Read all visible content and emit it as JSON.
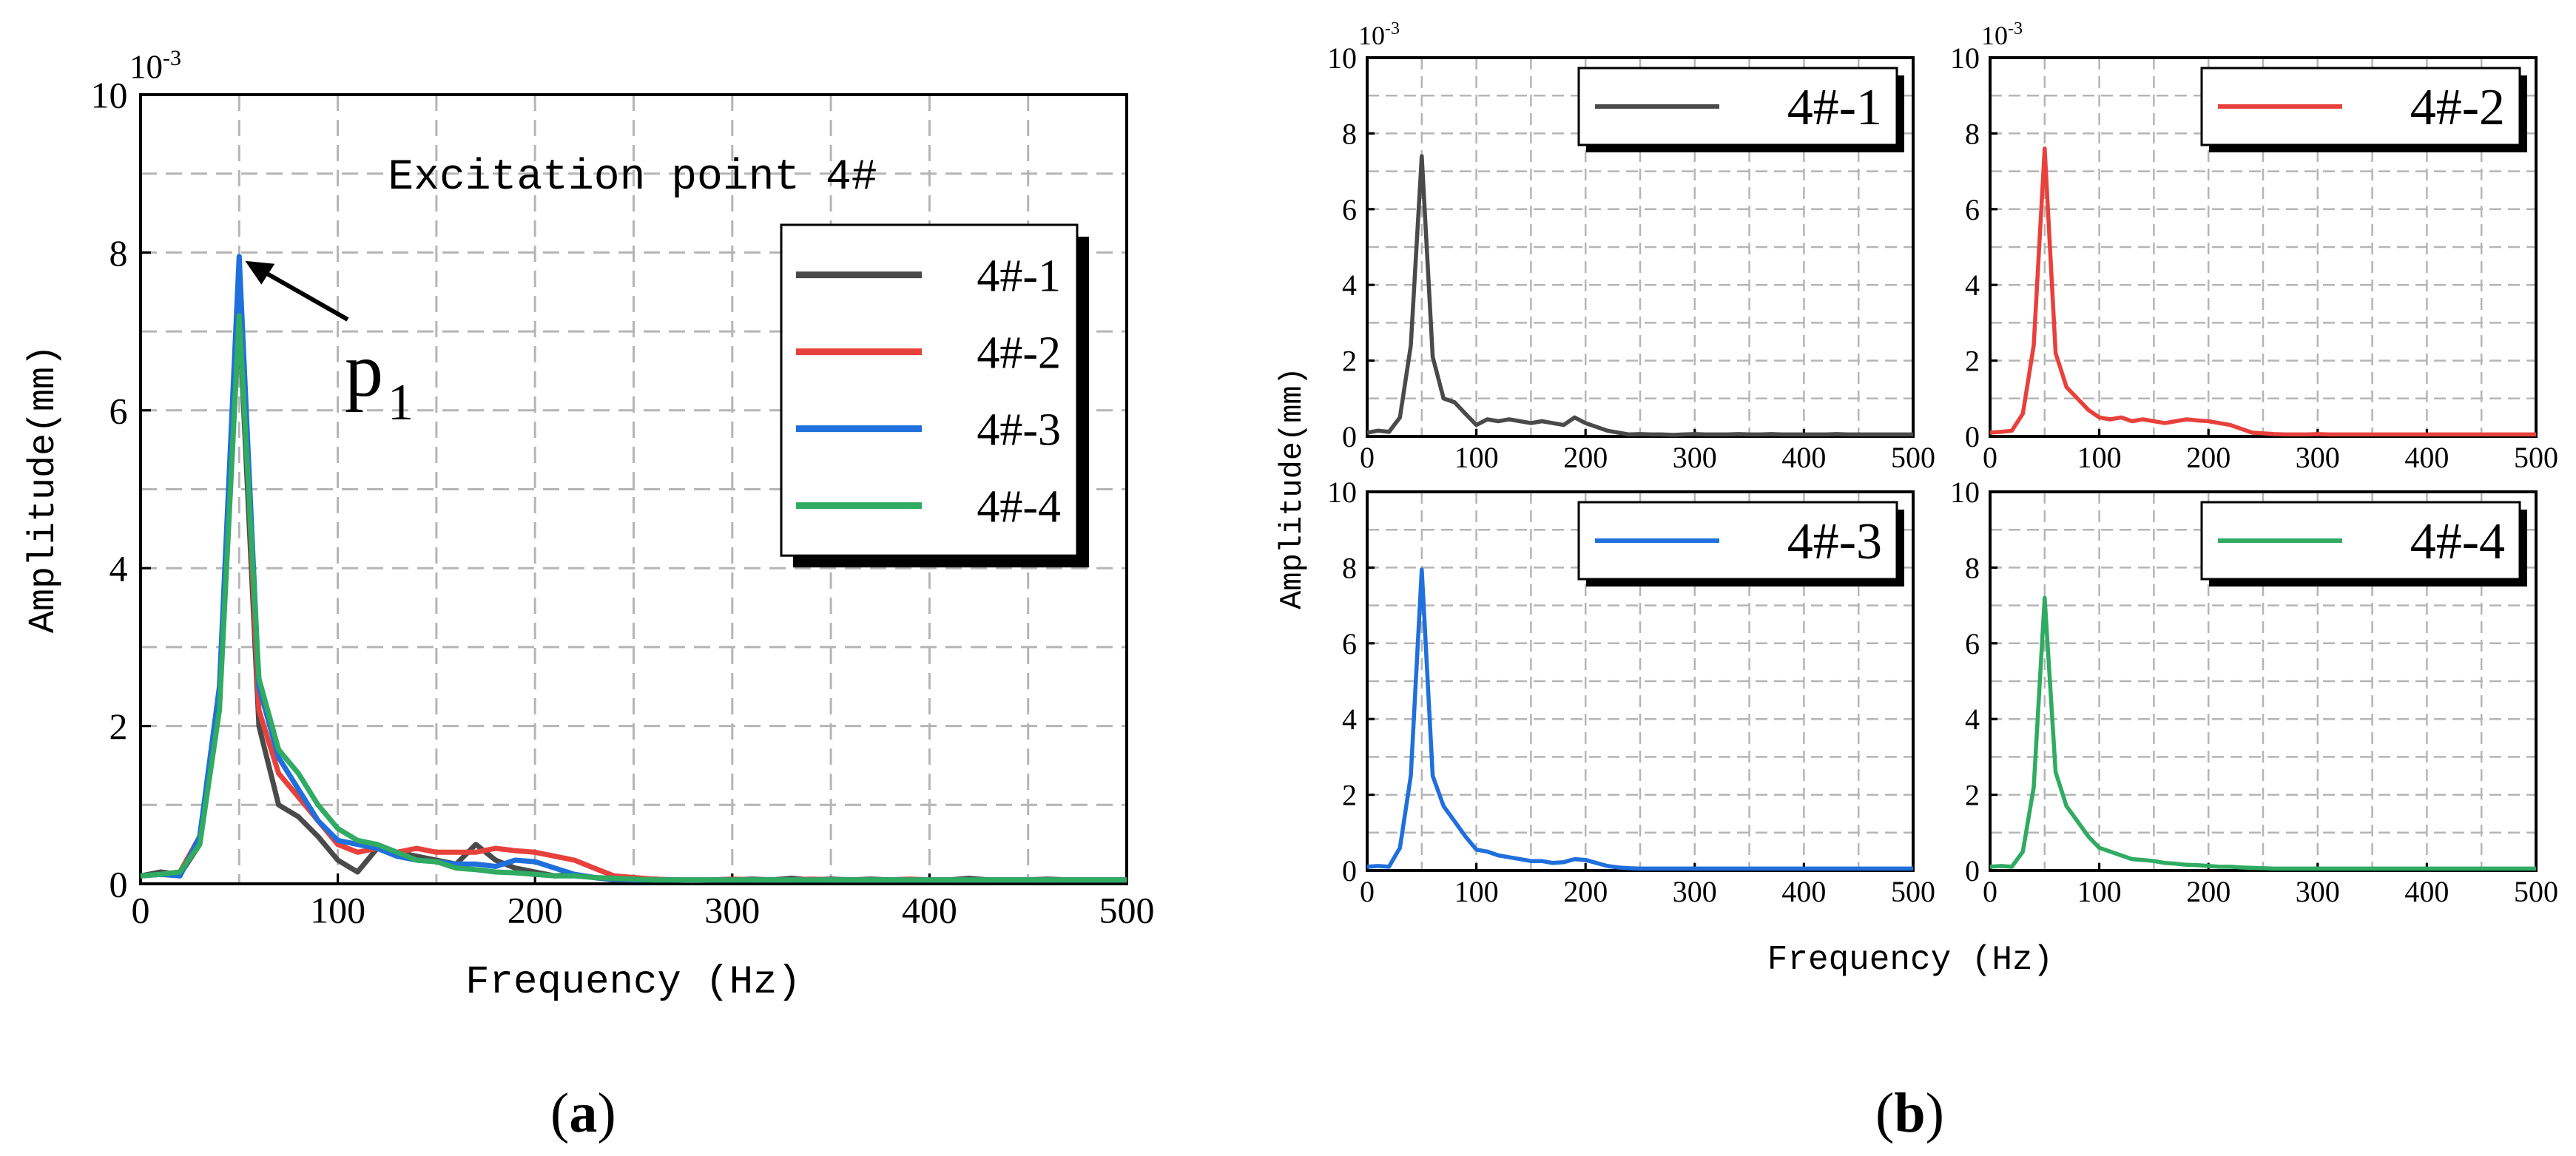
{
  "panel_labels": {
    "a": "a",
    "b": "b"
  },
  "series_colors": {
    "4#-1": "#4a4a4a",
    "4#-2": "#e8413c",
    "4#-3": "#1f6fdc",
    "4#-4": "#2fab62"
  },
  "chart_data": [
    {
      "id": "a",
      "type": "line",
      "title": "Excitation point 4#",
      "xlabel": "Frequency (Hz)",
      "ylabel": "Amplitude(mm)",
      "y_exponent": "10",
      "y_exponent_power": "-3",
      "xlim": [
        0,
        500
      ],
      "ylim": [
        0,
        10
      ],
      "xticks": [
        0,
        100,
        200,
        300,
        400,
        500
      ],
      "yticks": [
        0,
        2,
        4,
        6,
        8,
        10
      ],
      "grid": true,
      "legend_position": "right",
      "annotation": {
        "text": "p",
        "subscript": "1",
        "x": 50,
        "y": 7.95
      },
      "x": [
        0,
        10,
        20,
        30,
        40,
        50,
        60,
        70,
        80,
        90,
        100,
        110,
        120,
        130,
        140,
        150,
        160,
        170,
        180,
        190,
        200,
        210,
        220,
        230,
        240,
        250,
        260,
        270,
        280,
        290,
        300,
        310,
        320,
        330,
        340,
        350,
        360,
        370,
        380,
        390,
        400,
        410,
        420,
        430,
        440,
        450,
        460,
        470,
        480,
        490,
        500
      ],
      "series": [
        {
          "name": "4#-1",
          "values": [
            0.1,
            0.15,
            0.12,
            0.5,
            2.3,
            7.2,
            2.0,
            1.0,
            0.85,
            0.6,
            0.3,
            0.15,
            0.45,
            0.4,
            0.35,
            0.3,
            0.25,
            0.5,
            0.3,
            0.2,
            0.15,
            0.1,
            0.12,
            0.08,
            0.05,
            0.05,
            0.06,
            0.05,
            0.04,
            0.05,
            0.05,
            0.06,
            0.05,
            0.07,
            0.05,
            0.06,
            0.05,
            0.06,
            0.05,
            0.05,
            0.05,
            0.05,
            0.07,
            0.05,
            0.05,
            0.05,
            0.06,
            0.05,
            0.05,
            0.05,
            0.05
          ]
        },
        {
          "name": "4#-2",
          "values": [
            0.1,
            0.12,
            0.15,
            0.6,
            2.4,
            7.6,
            2.2,
            1.4,
            1.1,
            0.8,
            0.5,
            0.4,
            0.45,
            0.4,
            0.45,
            0.4,
            0.4,
            0.4,
            0.45,
            0.42,
            0.4,
            0.35,
            0.3,
            0.2,
            0.1,
            0.08,
            0.06,
            0.05,
            0.05,
            0.05,
            0.06,
            0.05,
            0.05,
            0.05,
            0.06,
            0.05,
            0.05,
            0.05,
            0.05,
            0.06,
            0.05,
            0.05,
            0.05,
            0.05,
            0.05,
            0.05,
            0.05,
            0.05,
            0.05,
            0.05,
            0.05
          ]
        },
        {
          "name": "4#-3",
          "values": [
            0.1,
            0.12,
            0.1,
            0.6,
            2.5,
            7.95,
            2.5,
            1.6,
            1.2,
            0.8,
            0.55,
            0.5,
            0.45,
            0.35,
            0.3,
            0.28,
            0.25,
            0.25,
            0.22,
            0.3,
            0.28,
            0.2,
            0.12,
            0.08,
            0.06,
            0.05,
            0.05,
            0.05,
            0.05,
            0.05,
            0.05,
            0.05,
            0.05,
            0.05,
            0.05,
            0.05,
            0.05,
            0.05,
            0.05,
            0.05,
            0.05,
            0.05,
            0.05,
            0.05,
            0.05,
            0.05,
            0.05,
            0.05,
            0.05,
            0.05,
            0.05
          ]
        },
        {
          "name": "4#-4",
          "values": [
            0.1,
            0.12,
            0.15,
            0.5,
            2.2,
            7.2,
            2.6,
            1.7,
            1.4,
            1.0,
            0.7,
            0.55,
            0.5,
            0.4,
            0.3,
            0.28,
            0.2,
            0.18,
            0.15,
            0.14,
            0.12,
            0.1,
            0.1,
            0.08,
            0.07,
            0.06,
            0.05,
            0.05,
            0.05,
            0.05,
            0.05,
            0.05,
            0.05,
            0.05,
            0.05,
            0.05,
            0.05,
            0.05,
            0.05,
            0.05,
            0.05,
            0.05,
            0.05,
            0.05,
            0.05,
            0.05,
            0.05,
            0.05,
            0.05,
            0.05,
            0.05
          ]
        }
      ]
    },
    {
      "id": "b",
      "type": "line",
      "xlabel": "Frequency (Hz)",
      "ylabel": "Amplitude(mm)",
      "y_exponent": "10",
      "y_exponent_power": "-3",
      "xlim": [
        0,
        500
      ],
      "ylim": [
        0,
        10
      ],
      "xticks": [
        0,
        100,
        200,
        300,
        400,
        500
      ],
      "yticks": [
        0,
        2,
        4,
        6,
        8,
        10
      ],
      "grid": true,
      "legend_position": "top-right",
      "x": [
        0,
        10,
        20,
        30,
        40,
        50,
        60,
        70,
        80,
        90,
        100,
        110,
        120,
        130,
        140,
        150,
        160,
        170,
        180,
        190,
        200,
        210,
        220,
        230,
        240,
        250,
        260,
        270,
        280,
        290,
        300,
        310,
        320,
        330,
        340,
        350,
        360,
        370,
        380,
        390,
        400,
        410,
        420,
        430,
        440,
        450,
        460,
        470,
        480,
        490,
        500
      ],
      "subplots": [
        {
          "name": "4#-1",
          "values": [
            0.1,
            0.15,
            0.12,
            0.5,
            2.4,
            7.4,
            2.1,
            1.0,
            0.9,
            0.6,
            0.3,
            0.45,
            0.4,
            0.45,
            0.4,
            0.35,
            0.4,
            0.35,
            0.3,
            0.5,
            0.35,
            0.25,
            0.15,
            0.1,
            0.05,
            0.06,
            0.05,
            0.05,
            0.04,
            0.05,
            0.06,
            0.05,
            0.05,
            0.05,
            0.06,
            0.05,
            0.05,
            0.06,
            0.05,
            0.05,
            0.05,
            0.05,
            0.05,
            0.06,
            0.05,
            0.05,
            0.05,
            0.05,
            0.05,
            0.05,
            0.05
          ]
        },
        {
          "name": "4#-2",
          "values": [
            0.1,
            0.12,
            0.15,
            0.6,
            2.4,
            7.6,
            2.2,
            1.3,
            1.0,
            0.7,
            0.5,
            0.45,
            0.5,
            0.4,
            0.45,
            0.4,
            0.35,
            0.4,
            0.45,
            0.42,
            0.4,
            0.35,
            0.3,
            0.2,
            0.1,
            0.08,
            0.06,
            0.05,
            0.05,
            0.05,
            0.06,
            0.05,
            0.05,
            0.05,
            0.05,
            0.05,
            0.05,
            0.05,
            0.05,
            0.05,
            0.05,
            0.05,
            0.05,
            0.05,
            0.05,
            0.05,
            0.05,
            0.05,
            0.05,
            0.05,
            0.05
          ]
        },
        {
          "name": "4#-3",
          "values": [
            0.1,
            0.12,
            0.1,
            0.6,
            2.5,
            7.95,
            2.5,
            1.7,
            1.3,
            0.9,
            0.55,
            0.5,
            0.4,
            0.35,
            0.3,
            0.25,
            0.25,
            0.2,
            0.22,
            0.3,
            0.28,
            0.2,
            0.12,
            0.08,
            0.06,
            0.05,
            0.05,
            0.05,
            0.05,
            0.05,
            0.05,
            0.05,
            0.05,
            0.05,
            0.05,
            0.05,
            0.05,
            0.05,
            0.05,
            0.05,
            0.05,
            0.05,
            0.05,
            0.05,
            0.05,
            0.05,
            0.05,
            0.05,
            0.05,
            0.05,
            0.05
          ]
        },
        {
          "name": "4#-4",
          "values": [
            0.1,
            0.12,
            0.1,
            0.5,
            2.2,
            7.2,
            2.6,
            1.7,
            1.3,
            0.9,
            0.6,
            0.5,
            0.4,
            0.3,
            0.28,
            0.25,
            0.2,
            0.18,
            0.15,
            0.14,
            0.12,
            0.1,
            0.1,
            0.08,
            0.07,
            0.06,
            0.05,
            0.05,
            0.05,
            0.05,
            0.05,
            0.05,
            0.05,
            0.05,
            0.05,
            0.05,
            0.05,
            0.05,
            0.05,
            0.05,
            0.05,
            0.05,
            0.05,
            0.05,
            0.05,
            0.05,
            0.05,
            0.05,
            0.05,
            0.05,
            0.05
          ]
        }
      ]
    }
  ]
}
